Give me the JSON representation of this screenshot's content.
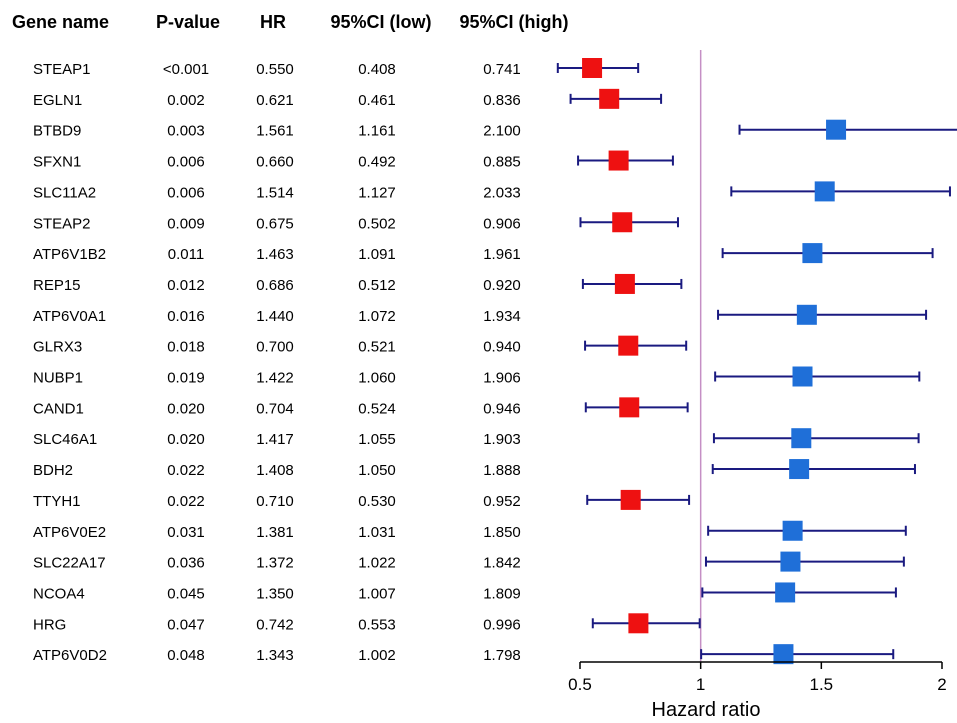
{
  "chart_data": {
    "type": "forest",
    "columns": {
      "gene": "Gene name",
      "p": "P-value",
      "hr": "HR",
      "low": "95%CI (low)",
      "high": "95%CI (high)"
    },
    "rows": [
      {
        "gene": "STEAP1",
        "p": "<0.001",
        "hr": "0.550",
        "low": "0.408",
        "high": "0.741"
      },
      {
        "gene": "EGLN1",
        "p": "0.002",
        "hr": "0.621",
        "low": "0.461",
        "high": "0.836"
      },
      {
        "gene": "BTBD9",
        "p": "0.003",
        "hr": "1.561",
        "low": "1.161",
        "high": "2.100"
      },
      {
        "gene": "SFXN1",
        "p": "0.006",
        "hr": "0.660",
        "low": "0.492",
        "high": "0.885"
      },
      {
        "gene": "SLC11A2",
        "p": "0.006",
        "hr": "1.514",
        "low": "1.127",
        "high": "2.033"
      },
      {
        "gene": "STEAP2",
        "p": "0.009",
        "hr": "0.675",
        "low": "0.502",
        "high": "0.906"
      },
      {
        "gene": "ATP6V1B2",
        "p": "0.011",
        "hr": "1.463",
        "low": "1.091",
        "high": "1.961"
      },
      {
        "gene": "REP15",
        "p": "0.012",
        "hr": "0.686",
        "low": "0.512",
        "high": "0.920"
      },
      {
        "gene": "ATP6V0A1",
        "p": "0.016",
        "hr": "1.440",
        "low": "1.072",
        "high": "1.934"
      },
      {
        "gene": "GLRX3",
        "p": "0.018",
        "hr": "0.700",
        "low": "0.521",
        "high": "0.940"
      },
      {
        "gene": "NUBP1",
        "p": "0.019",
        "hr": "1.422",
        "low": "1.060",
        "high": "1.906"
      },
      {
        "gene": "CAND1",
        "p": "0.020",
        "hr": "0.704",
        "low": "0.524",
        "high": "0.946"
      },
      {
        "gene": "SLC46A1",
        "p": "0.020",
        "hr": "1.417",
        "low": "1.055",
        "high": "1.903"
      },
      {
        "gene": "BDH2",
        "p": "0.022",
        "hr": "1.408",
        "low": "1.050",
        "high": "1.888"
      },
      {
        "gene": "TTYH1",
        "p": "0.022",
        "hr": "0.710",
        "low": "0.530",
        "high": "0.952"
      },
      {
        "gene": "ATP6V0E2",
        "p": "0.031",
        "hr": "1.381",
        "low": "1.031",
        "high": "1.850"
      },
      {
        "gene": "SLC22A17",
        "p": "0.036",
        "hr": "1.372",
        "low": "1.022",
        "high": "1.842"
      },
      {
        "gene": "NCOA4",
        "p": "0.045",
        "hr": "1.350",
        "low": "1.007",
        "high": "1.809"
      },
      {
        "gene": "HRG",
        "p": "0.047",
        "hr": "0.742",
        "low": "0.553",
        "high": "0.996"
      },
      {
        "gene": "ATP6V0D2",
        "p": "0.048",
        "hr": "1.343",
        "low": "1.002",
        "high": "1.798"
      }
    ],
    "xlabel": "Hazard ratio",
    "xticks": [
      0.5,
      1,
      1.5,
      2
    ],
    "xlim": [
      0.5,
      2.0
    ],
    "reference_line": 1,
    "colors": {
      "protective": "#ee1111",
      "risk": "#1f6fd8",
      "ci_line": "#1a1a80",
      "reference": "#c58fc5"
    }
  }
}
